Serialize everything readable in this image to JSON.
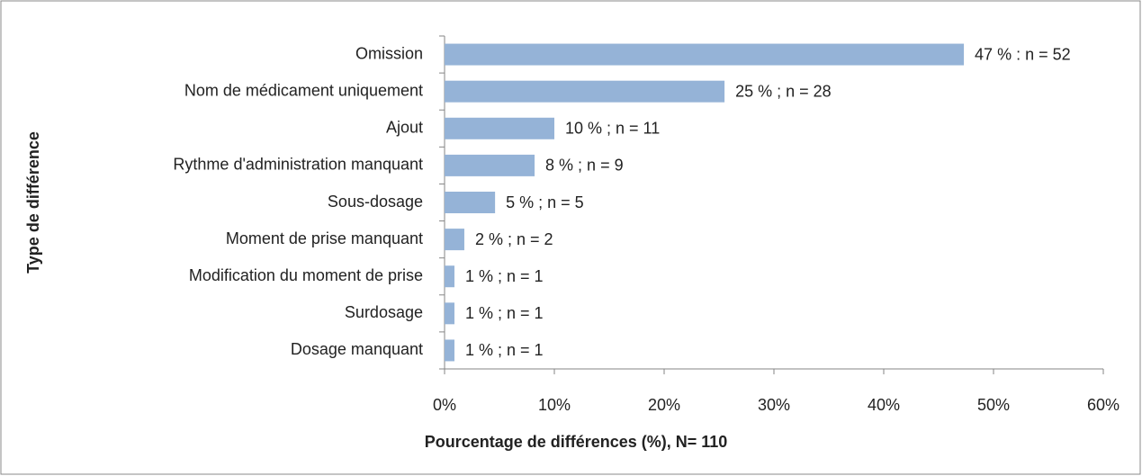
{
  "chart_data": {
    "type": "barh",
    "xlabel": "Pourcentage de différences (%), N= 110",
    "ylabel": "Type de différence",
    "categories": [
      "Omission",
      "Nom de médicament uniquement",
      "Ajout",
      "Rythme d'administration manquant",
      "Sous-dosage",
      "Moment de prise manquant",
      "Modification du moment de prise",
      "Surdosage",
      "Dosage manquant"
    ],
    "values": [
      47.3,
      25.5,
      10,
      8.2,
      4.6,
      1.8,
      0.9,
      0.9,
      0.9
    ],
    "value_labels": [
      "47 % : n = 52",
      "25 % ; n = 28",
      "10 % ; n = 11",
      "8 % ; n = 9",
      "5 % ; n = 5",
      "2 % ; n = 2",
      "1 % ; n = 1",
      "1 % ; n = 1",
      "1 % ; n = 1"
    ],
    "color": "#95b3d7",
    "xlim": [
      0,
      60
    ],
    "xticks": [
      {
        "value": 0,
        "label": "0%"
      },
      {
        "value": 10,
        "label": "10%"
      },
      {
        "value": 20,
        "label": "20%"
      },
      {
        "value": 30,
        "label": "30%"
      },
      {
        "value": 40,
        "label": "40%"
      },
      {
        "value": 50,
        "label": "50%"
      },
      {
        "value": 60,
        "label": "60%"
      }
    ],
    "grid": false
  }
}
